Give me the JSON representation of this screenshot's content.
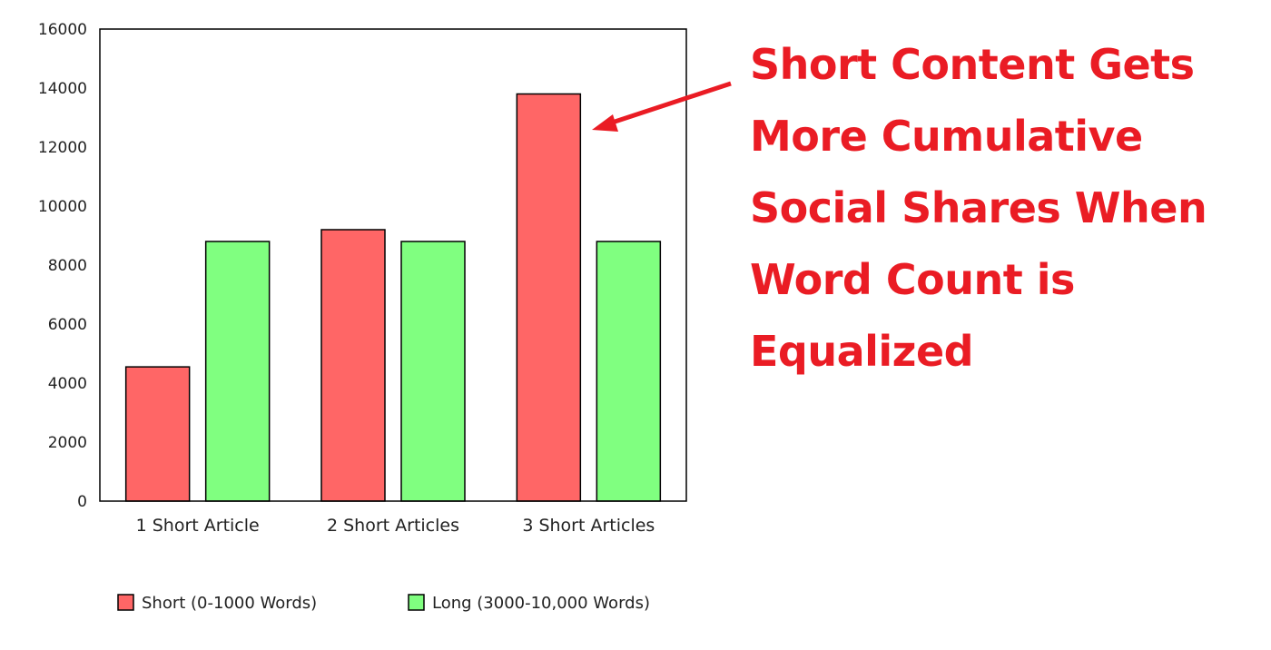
{
  "chart_data": {
    "type": "bar",
    "categories": [
      "1 Short Article",
      "2 Short Articles",
      "3 Short Articles"
    ],
    "series": [
      {
        "name": "Short (0-1000 Words)",
        "color": "#ff6666",
        "values": [
          4550,
          9200,
          13800
        ]
      },
      {
        "name": "Long (3000-10,000 Words)",
        "color": "#80ff80",
        "values": [
          8800,
          8800,
          8800
        ]
      }
    ],
    "title": "",
    "xlabel": "",
    "ylabel": "",
    "ylim": [
      0,
      16000
    ],
    "yticks": [
      0,
      2000,
      4000,
      6000,
      8000,
      10000,
      12000,
      14000,
      16000
    ],
    "grid": false,
    "legend_position": "bottom-left",
    "annotation": {
      "lines": [
        "Short Content Gets",
        "More Cumulative",
        "Social Shares When",
        "Word Count is",
        "Equalized"
      ],
      "color": "#ea1c24",
      "points_to": "3 Short Articles / Short (0-1000 Words)"
    }
  }
}
